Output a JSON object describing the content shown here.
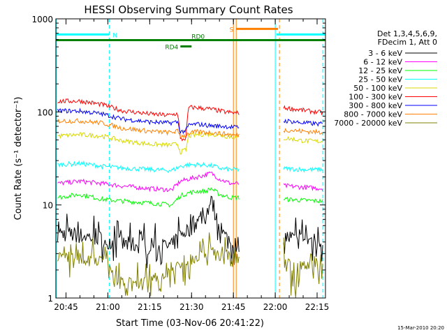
{
  "chart_data": {
    "type": "line",
    "title": "HESSI Observing Summary Count Rates",
    "xlabel": "Start Time (03-Nov-06 20:41:22)",
    "ylabel": "Count Rate (s⁻¹ detector⁻¹)",
    "y_scale": "log",
    "ylim": [
      1,
      1000
    ],
    "xlim": [
      "20:41:22",
      "22:18:00"
    ],
    "x_ticks": [
      "20:45",
      "21:00",
      "21:15",
      "21:30",
      "21:45",
      "22:00",
      "22:15"
    ],
    "y_ticks": [
      "1",
      "10",
      "100",
      "1000"
    ],
    "timestamp": "15-Mar-2010 20:20",
    "legend": {
      "placement": "right",
      "header": [
        "Det 1,3,4,5,6,9,",
        "FDecim 1, Att 0"
      ],
      "entries": [
        {
          "label": "3 - 6 keV",
          "color": "#000000"
        },
        {
          "label": "6 - 12 keV",
          "color": "#ff00ff"
        },
        {
          "label": "12 - 25 keV",
          "color": "#00ff00"
        },
        {
          "label": "25 - 50 keV",
          "color": "#00ffff"
        },
        {
          "label": "50 - 100 keV",
          "color": "#d8d800"
        },
        {
          "label": "100 - 300 keV",
          "color": "#ff0000"
        },
        {
          "label": "300 - 800 keV",
          "color": "#0000ff"
        },
        {
          "label": "800 - 7000 keV",
          "color": "#ff8000"
        },
        {
          "label": "7000 - 20000 keV",
          "color": "#808000"
        }
      ]
    },
    "gaps": [
      {
        "start": "21:47:00",
        "end": "22:03:00"
      }
    ],
    "series": [
      {
        "name": "3 - 6 keV",
        "color": "#000000",
        "points": [
          [
            "20:42",
            5.0
          ],
          [
            "20:55",
            4.5
          ],
          [
            "21:05",
            3.8
          ],
          [
            "21:15",
            3.6
          ],
          [
            "21:23",
            3.6
          ],
          [
            "21:26",
            4.8
          ],
          [
            "21:29",
            5.5
          ],
          [
            "21:32",
            6.5
          ],
          [
            "21:35",
            7.5
          ],
          [
            "21:37",
            11.0
          ],
          [
            "21:39",
            7.0
          ],
          [
            "21:41",
            5.0
          ],
          [
            "21:44",
            4.0
          ],
          [
            "21:46",
            3.8
          ],
          [
            "22:04",
            4.5
          ],
          [
            "22:10",
            4.2
          ],
          [
            "22:17",
            4.2
          ]
        ]
      },
      {
        "name": "6 - 12 keV",
        "color": "#ff00ff",
        "points": [
          [
            "20:42",
            17
          ],
          [
            "20:50",
            18
          ],
          [
            "20:58",
            17
          ],
          [
            "21:05",
            16
          ],
          [
            "21:15",
            15
          ],
          [
            "21:23",
            14.5
          ],
          [
            "21:26",
            18
          ],
          [
            "21:29",
            19
          ],
          [
            "21:32",
            20
          ],
          [
            "21:35",
            21
          ],
          [
            "21:37",
            22
          ],
          [
            "21:40",
            19
          ],
          [
            "21:44",
            17
          ],
          [
            "21:46",
            17
          ],
          [
            "22:04",
            16
          ],
          [
            "22:10",
            15.5
          ],
          [
            "22:17",
            15
          ]
        ]
      },
      {
        "name": "12 - 25 keV",
        "color": "#00ff00",
        "points": [
          [
            "20:42",
            12
          ],
          [
            "20:50",
            13
          ],
          [
            "20:58",
            11.5
          ],
          [
            "21:05",
            11
          ],
          [
            "21:15",
            10.5
          ],
          [
            "21:23",
            10
          ],
          [
            "21:26",
            12.5
          ],
          [
            "21:29",
            13.5
          ],
          [
            "21:32",
            14
          ],
          [
            "21:35",
            14
          ],
          [
            "21:37",
            15
          ],
          [
            "21:40",
            13
          ],
          [
            "21:44",
            12
          ],
          [
            "21:46",
            12
          ],
          [
            "22:04",
            11.5
          ],
          [
            "22:10",
            11.2
          ],
          [
            "22:17",
            11
          ]
        ]
      },
      {
        "name": "25 - 50 keV",
        "color": "#00ffff",
        "points": [
          [
            "20:42",
            27
          ],
          [
            "20:50",
            28
          ],
          [
            "20:58",
            26
          ],
          [
            "21:05",
            25
          ],
          [
            "21:15",
            24
          ],
          [
            "21:23",
            23.5
          ],
          [
            "21:26",
            26
          ],
          [
            "21:29",
            27
          ],
          [
            "21:32",
            27
          ],
          [
            "21:35",
            27
          ],
          [
            "21:38",
            26
          ],
          [
            "21:41",
            24.5
          ],
          [
            "21:44",
            24
          ],
          [
            "21:46",
            24
          ],
          [
            "22:04",
            24.5
          ],
          [
            "22:10",
            24
          ],
          [
            "22:17",
            24
          ]
        ]
      },
      {
        "name": "50 - 100 keV",
        "color": "#d8d800",
        "points": [
          [
            "20:42",
            55
          ],
          [
            "20:50",
            57
          ],
          [
            "20:58",
            55
          ],
          [
            "21:05",
            49
          ],
          [
            "21:15",
            45
          ],
          [
            "21:22",
            44
          ],
          [
            "21:25",
            45
          ],
          [
            "21:26",
            37
          ],
          [
            "21:28",
            39
          ],
          [
            "21:29",
            55
          ],
          [
            "21:32",
            57
          ],
          [
            "21:37",
            58
          ],
          [
            "21:42",
            55
          ],
          [
            "21:46",
            53
          ],
          [
            "22:04",
            52
          ],
          [
            "22:10",
            49
          ],
          [
            "22:17",
            48
          ]
        ]
      },
      {
        "name": "100 - 300 keV",
        "color": "#ff0000",
        "points": [
          [
            "20:42",
            130
          ],
          [
            "20:50",
            131
          ],
          [
            "20:58",
            120
          ],
          [
            "21:05",
            103
          ],
          [
            "21:15",
            95
          ],
          [
            "21:22",
            92
          ],
          [
            "21:25",
            96
          ],
          [
            "21:26",
            50
          ],
          [
            "21:28",
            52
          ],
          [
            "21:29",
            112
          ],
          [
            "21:32",
            111
          ],
          [
            "21:37",
            107
          ],
          [
            "21:42",
            100
          ],
          [
            "21:46",
            97
          ],
          [
            "22:04",
            110
          ],
          [
            "22:10",
            104
          ],
          [
            "22:17",
            98
          ]
        ]
      },
      {
        "name": "300 - 800 keV",
        "color": "#0000ff",
        "points": [
          [
            "20:42",
            103
          ],
          [
            "20:50",
            102
          ],
          [
            "20:58",
            95
          ],
          [
            "21:05",
            84
          ],
          [
            "21:15",
            78
          ],
          [
            "21:22",
            76
          ],
          [
            "21:25",
            78
          ],
          [
            "21:26",
            61
          ],
          [
            "21:28",
            63
          ],
          [
            "21:29",
            72
          ],
          [
            "21:32",
            74
          ],
          [
            "21:37",
            71
          ],
          [
            "21:42",
            70
          ],
          [
            "21:46",
            68
          ],
          [
            "22:04",
            80
          ],
          [
            "22:10",
            76
          ],
          [
            "22:17",
            74
          ]
        ]
      },
      {
        "name": "800 - 7000 keV",
        "color": "#ff8000",
        "points": [
          [
            "20:42",
            80
          ],
          [
            "20:50",
            80
          ],
          [
            "20:58",
            76
          ],
          [
            "21:05",
            67
          ],
          [
            "21:15",
            62
          ],
          [
            "21:22",
            60
          ],
          [
            "21:25",
            62
          ],
          [
            "21:26",
            55
          ],
          [
            "21:28",
            56
          ],
          [
            "21:29",
            59
          ],
          [
            "21:32",
            61
          ],
          [
            "21:37",
            60
          ],
          [
            "21:42",
            58
          ],
          [
            "21:46",
            56
          ],
          [
            "22:04",
            64
          ],
          [
            "22:10",
            62
          ],
          [
            "22:17",
            60
          ]
        ]
      },
      {
        "name": "7000 - 20000 keV",
        "color": "#808000",
        "points": [
          [
            "20:42",
            3.0
          ],
          [
            "20:50",
            2.8
          ],
          [
            "20:58",
            2.5
          ],
          [
            "21:02",
            1.6
          ],
          [
            "21:08",
            1.4
          ],
          [
            "21:15",
            1.4
          ],
          [
            "21:22",
            2.0
          ],
          [
            "21:27",
            2.3
          ],
          [
            "21:32",
            3.0
          ],
          [
            "21:37",
            3.2
          ],
          [
            "21:41",
            2.8
          ],
          [
            "21:46",
            2.6
          ],
          [
            "22:04",
            2.6
          ],
          [
            "22:07",
            1.3
          ],
          [
            "22:10",
            2.4
          ],
          [
            "22:17",
            2.5
          ]
        ]
      }
    ],
    "flag_bars": [
      {
        "label": "N",
        "color": "#00ffff",
        "segments": [
          [
            "20:41:22",
            "21:00:30"
          ],
          [
            "22:00:30",
            "22:18:00"
          ]
        ],
        "level": 680
      },
      {
        "label": "S",
        "color": "#ff8000",
        "segments": [
          [
            "21:46:00",
            "22:01:00"
          ]
        ],
        "level": 780
      },
      {
        "label": "RD0",
        "color": "#008000",
        "segments": [
          [
            "20:41:22",
            "22:18:00"
          ]
        ],
        "level": 590
      },
      {
        "label": "RD4",
        "color": "#008000",
        "segments": [
          [
            "21:26:00",
            "21:30:00"
          ]
        ],
        "level": 505
      }
    ],
    "vertical_markers": [
      {
        "time": "20:41:30",
        "color": "#00ffff",
        "style": "solid"
      },
      {
        "time": "21:00:30",
        "color": "#00ffff",
        "style": "dashed"
      },
      {
        "time": "21:45:00",
        "color": "#ff8000",
        "style": "solid"
      },
      {
        "time": "21:46:00",
        "color": "#ff8000",
        "style": "solid"
      },
      {
        "time": "22:00:00",
        "color": "#00ffff",
        "style": "solid"
      },
      {
        "time": "22:01:30",
        "color": "#ff8000",
        "style": "dashed"
      },
      {
        "time": "22:17:00",
        "color": "#00ffff",
        "style": "dashed"
      }
    ]
  }
}
